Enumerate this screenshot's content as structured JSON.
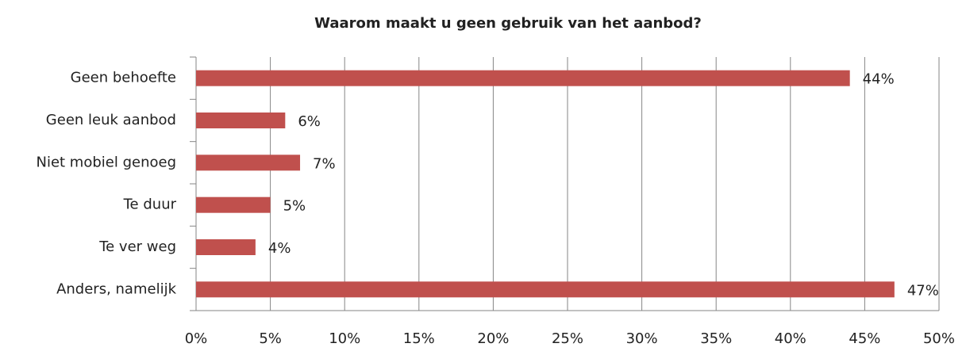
{
  "chart_data": {
    "type": "bar",
    "orientation": "horizontal",
    "title": "Waarom maakt u geen gebruik van het aanbod?",
    "categories": [
      "Geen behoefte",
      "Geen leuk aanbod",
      "Niet mobiel genoeg",
      "Te duur",
      "Te ver weg",
      "Anders, namelijk"
    ],
    "values": [
      44,
      6,
      7,
      5,
      4,
      47
    ],
    "value_labels": [
      "44%",
      "6%",
      "7%",
      "5%",
      "4%",
      "47%"
    ],
    "color": "#c0504d",
    "xlim": [
      0,
      50
    ],
    "xticks": [
      {
        "value": 0,
        "label": "0%"
      },
      {
        "value": 5,
        "label": "5%"
      },
      {
        "value": 10,
        "label": "10%"
      },
      {
        "value": 15,
        "label": "15%"
      },
      {
        "value": 20,
        "label": "20%"
      },
      {
        "value": 25,
        "label": "25%"
      },
      {
        "value": 30,
        "label": "30%"
      },
      {
        "value": 35,
        "label": "35%"
      },
      {
        "value": 40,
        "label": "40%"
      },
      {
        "value": 45,
        "label": "45%"
      },
      {
        "value": 50,
        "label": "50%"
      }
    ],
    "grid": true
  }
}
